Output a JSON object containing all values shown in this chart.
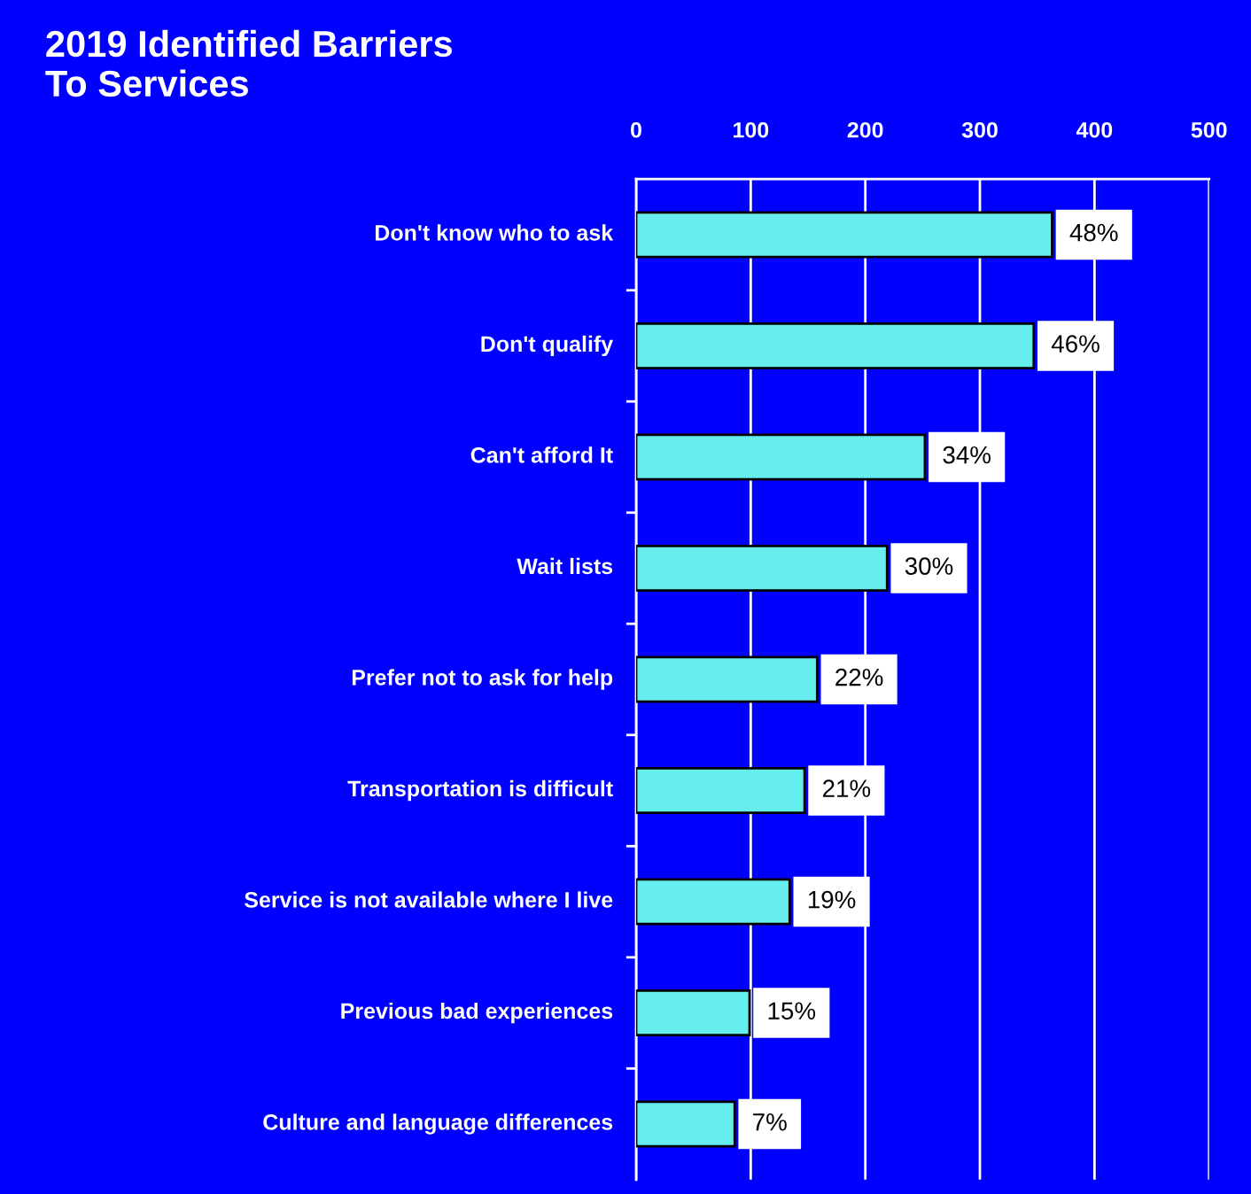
{
  "chart_data": {
    "type": "bar",
    "orientation": "horizontal",
    "title": "2019 Identified Barriers\nTo Services",
    "categories": [
      "Don't know who to ask",
      "Don't qualify",
      "Can't afford It",
      "Wait lists",
      "Prefer not to ask for help",
      "Transportation is difficult",
      "Service is not available where I live",
      "Previous bad experiences",
      "Culture and language differences"
    ],
    "values": [
      363,
      347,
      252,
      219,
      158,
      147,
      134,
      99,
      86
    ],
    "annotations": [
      {
        "text": "48%",
        "x": 363,
        "y": "Don't know who to ask"
      },
      {
        "text": "46%",
        "x": 347,
        "y": "Don't qualify"
      },
      {
        "text": "34%",
        "x": 252,
        "y": "Can't afford It"
      },
      {
        "text": "30%",
        "x": 219,
        "y": "Wait lists"
      },
      {
        "text": "22%",
        "x": 158,
        "y": "Prefer not to ask for help"
      },
      {
        "text": "21%",
        "x": 147,
        "y": "Transportation is difficult"
      },
      {
        "text": "19%",
        "x": 134,
        "y": "Service is not available where I live"
      },
      {
        "text": "15%",
        "x": 99,
        "y": "Previous bad experiences"
      },
      {
        "text": "7%",
        "x": 86,
        "y": "Culture and language differences"
      }
    ],
    "color": "#66eeee",
    "xlim": [
      0,
      500
    ],
    "xticks": [
      0,
      100,
      200,
      300,
      400,
      500
    ],
    "grid": "x"
  }
}
